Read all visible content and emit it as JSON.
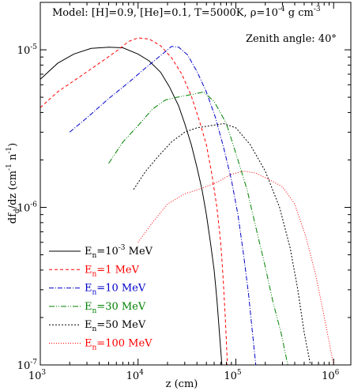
{
  "chart_data": {
    "type": "line",
    "x_scale": "log",
    "y_scale": "log",
    "xlim": [
      1000,
      1500000
    ],
    "ylim": [
      1e-07,
      2e-05
    ],
    "xlabel": "z (cm)",
    "ylabel_main": "df",
    "ylabel_sub": "d",
    "ylabel_rest": "/dz (cm",
    "ylabel_sup1": "-1",
    "ylabel_mid": " n",
    "ylabel_sup2": "-1",
    "ylabel_end": ")",
    "model_text": "Model: [H]=0.9, [He]=0.1, T=5000K, ρ=10",
    "model_sup": "-4",
    "model_end": " g cm",
    "model_sup2": "-3",
    "zenith_text": "Zenith angle: 40°",
    "x_ticks": [
      {
        "value": 1000,
        "base": "10",
        "exp": "3"
      },
      {
        "value": 10000,
        "base": "10",
        "exp": "4"
      },
      {
        "value": 100000,
        "base": "10",
        "exp": "5"
      },
      {
        "value": 1000000,
        "base": "10",
        "exp": "6"
      }
    ],
    "y_ticks": [
      {
        "value": 1e-05,
        "base": "10",
        "exp": "-5"
      },
      {
        "value": 1e-06,
        "base": "10",
        "exp": "-6"
      },
      {
        "value": 1e-07,
        "base": "10",
        "exp": "-7"
      }
    ],
    "series": [
      {
        "name_pre": "E",
        "name_sub": "n",
        "name_post": "=10",
        "name_sup": "-3",
        "name_end": " MeV",
        "color": "#000000",
        "dash": "",
        "points": [
          [
            1000,
            6.5e-06
          ],
          [
            1500,
            8.2e-06
          ],
          [
            2200,
            9.4e-06
          ],
          [
            3300,
            1.02e-05
          ],
          [
            5000,
            1.04e-05
          ],
          [
            7000,
            1.03e-05
          ],
          [
            10000,
            9.4e-06
          ],
          [
            13000,
            8.5e-06
          ],
          [
            17000,
            7.2e-06
          ],
          [
            21000,
            5.8e-06
          ],
          [
            26000,
            4.4e-06
          ],
          [
            30000,
            3.4e-06
          ],
          [
            35000,
            2.5e-06
          ],
          [
            40000,
            1.8e-06
          ],
          [
            45000,
            1.3e-06
          ],
          [
            50000,
            9e-07
          ],
          [
            55000,
            6e-07
          ],
          [
            60000,
            4e-07
          ],
          [
            64000,
            2.6e-07
          ],
          [
            68000,
            1.6e-07
          ],
          [
            72000,
            1e-07
          ]
        ]
      },
      {
        "name_pre": "E",
        "name_sub": "n",
        "name_post": "=1 MeV",
        "name_sup": "",
        "name_end": "",
        "color": "#ff0000",
        "dash": "4,3",
        "points": [
          [
            1000,
            4.3e-06
          ],
          [
            1500,
            5.4e-06
          ],
          [
            2500,
            6.7e-06
          ],
          [
            4000,
            8.2e-06
          ],
          [
            6000,
            9.8e-06
          ],
          [
            8000,
            1.13e-05
          ],
          [
            10000,
            1.19e-05
          ],
          [
            13000,
            1.17e-05
          ],
          [
            17000,
            1.06e-05
          ],
          [
            22000,
            8.9e-06
          ],
          [
            28000,
            7e-06
          ],
          [
            35000,
            5.1e-06
          ],
          [
            42000,
            3.6e-06
          ],
          [
            50000,
            2.5e-06
          ],
          [
            57000,
            1.6e-06
          ],
          [
            64000,
            1e-06
          ],
          [
            70000,
            6e-07
          ],
          [
            74000,
            3.6e-07
          ],
          [
            78000,
            2e-07
          ],
          [
            82000,
            1e-07
          ]
        ]
      },
      {
        "name_pre": "E",
        "name_sub": "n",
        "name_post": "=10 MeV",
        "name_sup": "",
        "name_end": "",
        "color": "#0000c8",
        "dash": "6,2,1,2",
        "points": [
          [
            2000,
            3e-06
          ],
          [
            3000,
            3.7e-06
          ],
          [
            5000,
            4.9e-06
          ],
          [
            8000,
            6.2e-06
          ],
          [
            12000,
            7.7e-06
          ],
          [
            17000,
            9.2e-06
          ],
          [
            22000,
            1.05e-05
          ],
          [
            26000,
            1.04e-05
          ],
          [
            32000,
            9.3e-06
          ],
          [
            40000,
            7.3e-06
          ],
          [
            50000,
            5.4e-06
          ],
          [
            62000,
            3.7e-06
          ],
          [
            75000,
            2.4e-06
          ],
          [
            90000,
            1.5e-06
          ],
          [
            105000,
            9e-07
          ],
          [
            120000,
            5e-07
          ],
          [
            135000,
            2.8e-07
          ],
          [
            148000,
            1.6e-07
          ],
          [
            160000,
            1e-07
          ]
        ]
      },
      {
        "name_pre": "E",
        "name_sub": "n",
        "name_post": "=30 MeV",
        "name_sup": "",
        "name_end": "",
        "color": "#008000",
        "dash": "7,2,1,2,1,2",
        "points": [
          [
            5000,
            1.9e-06
          ],
          [
            7000,
            2.6e-06
          ],
          [
            10000,
            3.3e-06
          ],
          [
            14000,
            4.2e-06
          ],
          [
            19000,
            4.8e-06
          ],
          [
            25000,
            5e-06
          ],
          [
            35000,
            5.2e-06
          ],
          [
            47000,
            5.4e-06
          ],
          [
            60000,
            4.7e-06
          ],
          [
            80000,
            3.4e-06
          ],
          [
            100000,
            2.2e-06
          ],
          [
            130000,
            1.3e-06
          ],
          [
            160000,
            7.5e-07
          ],
          [
            200000,
            4.2e-07
          ],
          [
            240000,
            2.5e-07
          ],
          [
            290000,
            1.6e-07
          ],
          [
            340000,
            1e-07
          ]
        ]
      },
      {
        "name_pre": "E",
        "name_sub": "n",
        "name_post": "=50 MeV",
        "name_sup": "",
        "name_end": "",
        "color": "#000000",
        "dash": "2,2",
        "points": [
          [
            9000,
            1.3e-06
          ],
          [
            12000,
            1.7e-06
          ],
          [
            16000,
            2.1e-06
          ],
          [
            22000,
            2.6e-06
          ],
          [
            30000,
            3e-06
          ],
          [
            40000,
            3.2e-06
          ],
          [
            55000,
            3.3e-06
          ],
          [
            75000,
            3.4e-06
          ],
          [
            100000,
            3.2e-06
          ],
          [
            140000,
            2.5e-06
          ],
          [
            200000,
            1.7e-06
          ],
          [
            280000,
            1e-06
          ],
          [
            360000,
            5.5e-07
          ],
          [
            430000,
            3e-07
          ],
          [
            500000,
            1.6e-07
          ],
          [
            580000,
            1e-07
          ]
        ]
      },
      {
        "name_pre": "E",
        "name_sub": "n",
        "name_post": "=100 MeV",
        "name_sup": "",
        "name_end": "",
        "color": "#ff0000",
        "dash": "1,2",
        "points": [
          [
            10000,
            6e-07
          ],
          [
            14000,
            8e-07
          ],
          [
            20000,
            1.05e-06
          ],
          [
            30000,
            1.22e-06
          ],
          [
            45000,
            1.32e-06
          ],
          [
            65000,
            1.45e-06
          ],
          [
            90000,
            1.62e-06
          ],
          [
            120000,
            1.7e-06
          ],
          [
            160000,
            1.65e-06
          ],
          [
            220000,
            1.5e-06
          ],
          [
            300000,
            1.35e-06
          ],
          [
            400000,
            1.05e-06
          ],
          [
            520000,
            6.5e-07
          ],
          [
            650000,
            3.8e-07
          ],
          [
            780000,
            2.2e-07
          ],
          [
            900000,
            1.4e-07
          ],
          [
            1000000,
            1e-07
          ]
        ]
      }
    ]
  }
}
